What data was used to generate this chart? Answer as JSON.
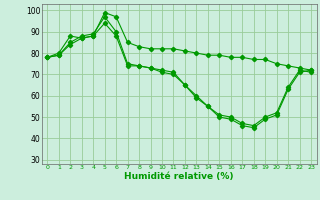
{
  "background_color": "#cceedd",
  "grid_color": "#99cc99",
  "line_color": "#009900",
  "xlabel": "Humidité relative (%)",
  "xlabel_color": "#009900",
  "ylim": [
    28,
    103
  ],
  "xlim": [
    -0.5,
    23.5
  ],
  "yticks": [
    30,
    40,
    50,
    60,
    70,
    80,
    90,
    100
  ],
  "xticks": [
    0,
    1,
    2,
    3,
    4,
    5,
    6,
    7,
    8,
    9,
    10,
    11,
    12,
    13,
    14,
    15,
    16,
    17,
    18,
    19,
    20,
    21,
    22,
    23
  ],
  "series": [
    {
      "x": [
        0,
        1,
        2,
        3,
        4,
        5,
        6,
        7,
        8,
        9,
        10,
        11,
        12,
        13,
        14,
        15,
        16,
        17,
        18,
        19,
        20,
        21,
        22,
        23
      ],
      "y": [
        78,
        80,
        88,
        87,
        88,
        99,
        97,
        85,
        83,
        82,
        82,
        82,
        81,
        80,
        79,
        79,
        78,
        78,
        77,
        77,
        75,
        74,
        73,
        72
      ]
    },
    {
      "x": [
        0,
        1,
        2,
        3,
        4,
        5,
        6,
        7,
        8,
        9,
        10,
        11,
        12,
        13,
        14,
        15,
        16,
        17,
        18,
        19,
        20,
        21,
        22,
        23
      ],
      "y": [
        78,
        79,
        85,
        88,
        89,
        97,
        90,
        75,
        74,
        73,
        72,
        71,
        65,
        60,
        55,
        51,
        50,
        47,
        46,
        50,
        52,
        64,
        72,
        71
      ]
    },
    {
      "x": [
        0,
        1,
        2,
        3,
        4,
        5,
        6,
        7,
        8,
        9,
        10,
        11,
        12,
        13,
        14,
        15,
        16,
        17,
        18,
        19,
        20,
        21,
        22,
        23
      ],
      "y": [
        78,
        79,
        84,
        87,
        88,
        94,
        88,
        74,
        74,
        73,
        71,
        70,
        65,
        59,
        55,
        50,
        49,
        46,
        45,
        49,
        51,
        63,
        71,
        72
      ]
    }
  ]
}
